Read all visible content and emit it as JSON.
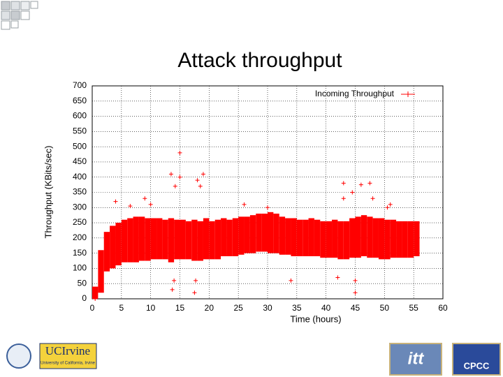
{
  "chart_data": {
    "type": "range-scatter",
    "title": "Attack throughput",
    "x_label": "Time (hours)",
    "y_label": "Throughput (KBits/sec)",
    "series": [
      {
        "name": "Incoming Throughput",
        "color": "#ff0000",
        "x": [
          0,
          1,
          2,
          3,
          4,
          5,
          6,
          7,
          8,
          9,
          10,
          11,
          12,
          13,
          14,
          15,
          16,
          17,
          18,
          19,
          20,
          21,
          22,
          23,
          24,
          25,
          26,
          27,
          28,
          29,
          30,
          31,
          32,
          33,
          34,
          35,
          36,
          37,
          38,
          39,
          40,
          41,
          42,
          43,
          44,
          45,
          46,
          47,
          48,
          49,
          50,
          51,
          52,
          53,
          54,
          55
        ],
        "low": [
          0,
          20,
          90,
          100,
          110,
          120,
          120,
          120,
          125,
          125,
          130,
          130,
          130,
          120,
          130,
          130,
          130,
          125,
          125,
          130,
          130,
          130,
          140,
          140,
          140,
          145,
          150,
          150,
          155,
          155,
          150,
          150,
          145,
          145,
          140,
          140,
          140,
          140,
          140,
          135,
          135,
          135,
          130,
          130,
          135,
          135,
          140,
          135,
          135,
          130,
          130,
          135,
          135,
          135,
          135,
          140
        ],
        "high": [
          40,
          160,
          220,
          240,
          250,
          260,
          265,
          270,
          270,
          265,
          265,
          265,
          260,
          265,
          260,
          260,
          255,
          260,
          255,
          265,
          255,
          260,
          265,
          260,
          265,
          270,
          270,
          275,
          280,
          280,
          285,
          280,
          270,
          265,
          265,
          260,
          260,
          265,
          260,
          255,
          255,
          260,
          255,
          255,
          265,
          270,
          275,
          270,
          265,
          265,
          260,
          260,
          255,
          255,
          255,
          255
        ],
        "outlier_x": [
          0.5,
          4,
          6.5,
          9,
          10,
          13.5,
          13.7,
          14,
          14.2,
          15,
          15,
          17.5,
          17.7,
          18,
          18.5,
          19,
          26,
          30,
          34,
          42,
          43,
          43,
          44.5,
          45,
          45,
          46,
          47.5,
          48,
          50.5,
          51
        ],
        "outliers": [
          0,
          320,
          305,
          330,
          310,
          410,
          30,
          60,
          370,
          480,
          400,
          20,
          60,
          390,
          370,
          410,
          310,
          300,
          60,
          70,
          330,
          380,
          350,
          20,
          60,
          375,
          380,
          330,
          300,
          310
        ]
      }
    ],
    "xlim": [
      0,
      60
    ],
    "ylim": [
      0,
      700
    ],
    "xticks": [
      0,
      5,
      10,
      15,
      20,
      25,
      30,
      35,
      40,
      45,
      50,
      55,
      60
    ],
    "yticks": [
      0,
      50,
      100,
      150,
      200,
      250,
      300,
      350,
      400,
      450,
      500,
      550,
      600,
      650,
      700
    ],
    "grid": true,
    "legend": "top-right"
  },
  "logos": {
    "university": "UCIrvine",
    "university_sub": "University of California, Irvine",
    "partner1": "itt",
    "partner2": "CPCC"
  }
}
